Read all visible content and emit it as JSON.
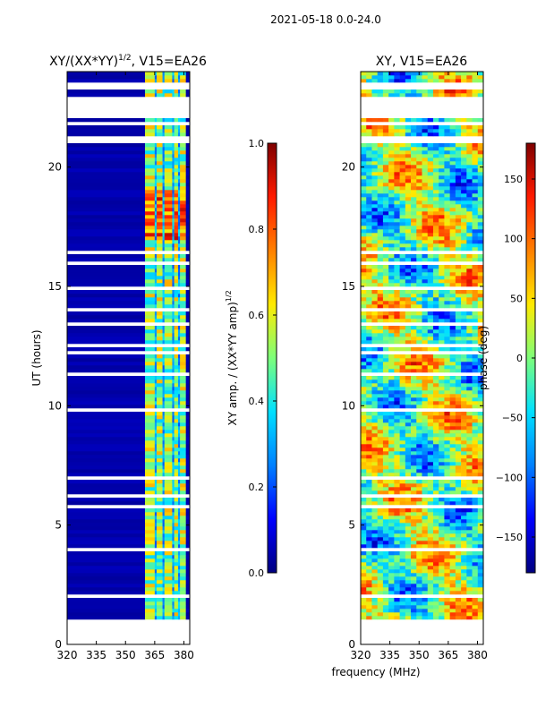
{
  "figure": {
    "suptitle": "2021-05-18 0.0-24.0",
    "xlabel": "frequency (MHz)"
  },
  "colors": {
    "jet": [
      "#00007f",
      "#0000ff",
      "#0080ff",
      "#00e0ff",
      "#7dff7a",
      "#ffea00",
      "#ff8000",
      "#ff1a00",
      "#7f0000"
    ],
    "axes": "#000000",
    "background": "#ffffff",
    "low_amplitude": "#00008f"
  },
  "chart_data": [
    {
      "type": "heatmap",
      "name": "normalized-xy-amplitude",
      "title": "XY/(XX*YY)",
      "title_superscript": "1/2",
      "title_suffix": ", V15=EA26",
      "ylabel": "UT (hours)",
      "xlim": [
        320,
        383
      ],
      "ylim": [
        0,
        24
      ],
      "xticks": [
        320,
        335,
        350,
        365,
        380
      ],
      "yticks": [
        0,
        5,
        10,
        15,
        20
      ],
      "colorbar": {
        "label": "XY amp. / (XX*YY amp)",
        "label_superscript": "1/2",
        "range": [
          0.0,
          1.0
        ],
        "ticks": [
          "0.0",
          "0.2",
          "0.4",
          "0.6",
          "0.8",
          "1.0"
        ]
      },
      "data_time_span_hours": [
        1.0,
        24.0
      ],
      "gap_hours": [
        22.0,
        23.0
      ],
      "gaps": [
        [
          23.3,
          23.55
        ],
        [
          22.6,
          23.0
        ]
      ],
      "strong_signal_bands_mhz": [
        [
          360,
          365
        ],
        [
          366,
          369
        ],
        [
          370,
          374
        ],
        [
          375,
          377
        ],
        [
          378,
          381
        ]
      ]
    },
    {
      "type": "heatmap",
      "name": "xy-phase",
      "title": "XY, V15=EA26",
      "xlim": [
        320,
        383
      ],
      "ylim": [
        0,
        24
      ],
      "xticks": [
        320,
        335,
        350,
        365,
        380
      ],
      "yticks": [
        0,
        5,
        10,
        15,
        20
      ],
      "colorbar": {
        "label": "phase (deg)",
        "range": [
          -180,
          180
        ],
        "ticks": [
          "−150",
          "−100",
          "−50",
          "0",
          "50",
          "100",
          "150"
        ]
      },
      "data_time_span_hours": [
        1.0,
        24.0
      ],
      "gap_hours": [
        22.0,
        23.0
      ]
    }
  ]
}
